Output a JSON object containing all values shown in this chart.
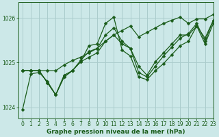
{
  "title": "Graphe pression niveau de la mer (hPa)",
  "bg_color": "#cce8e8",
  "grid_color": "#aacccc",
  "line_color": "#1a5c1a",
  "marker_color": "#1a5c1a",
  "xlim": [
    -0.5,
    23
  ],
  "ylim": [
    1023.75,
    1026.35
  ],
  "yticks": [
    1024,
    1025,
    1026
  ],
  "xticks": [
    0,
    1,
    2,
    3,
    4,
    5,
    6,
    7,
    8,
    9,
    10,
    11,
    12,
    13,
    14,
    15,
    16,
    17,
    18,
    19,
    20,
    21,
    22,
    23
  ],
  "series": [
    [
      1023.95,
      1024.75,
      1024.78,
      1024.58,
      1024.28,
      1024.72,
      1024.82,
      1025.02,
      1025.38,
      1025.42,
      1025.88,
      1026.02,
      1025.28,
      1025.15,
      1024.68,
      1024.62,
      1024.82,
      1024.98,
      1025.18,
      1025.38,
      1025.48,
      1025.82,
      1025.42,
      1025.88
    ],
    [
      1024.82,
      1024.82,
      1024.82,
      1024.82,
      1024.82,
      1024.95,
      1025.05,
      1025.12,
      1025.22,
      1025.32,
      1025.48,
      1025.62,
      1025.72,
      1025.82,
      1025.58,
      1025.68,
      1025.78,
      1025.88,
      1025.95,
      1026.02,
      1025.88,
      1025.98,
      1025.98,
      1026.08
    ],
    [
      1024.82,
      1024.82,
      1024.82,
      1024.55,
      1024.28,
      1024.68,
      1024.82,
      1025.02,
      1025.12,
      1025.22,
      1025.48,
      1025.62,
      1025.42,
      1025.32,
      1024.92,
      1024.72,
      1025.02,
      1025.22,
      1025.42,
      1025.62,
      1025.62,
      1025.82,
      1025.55,
      1025.95
    ],
    [
      1024.82,
      1024.82,
      1024.82,
      1024.55,
      1024.28,
      1024.68,
      1024.82,
      1025.05,
      1025.25,
      1025.32,
      1025.62,
      1025.78,
      1025.48,
      1025.32,
      1024.78,
      1024.68,
      1024.92,
      1025.15,
      1025.35,
      1025.55,
      1025.65,
      1025.88,
      1025.48,
      1025.95
    ]
  ],
  "tick_fontsize": 5.5,
  "label_fontsize": 6.5,
  "linewidth": 0.9,
  "markersize": 2.5
}
